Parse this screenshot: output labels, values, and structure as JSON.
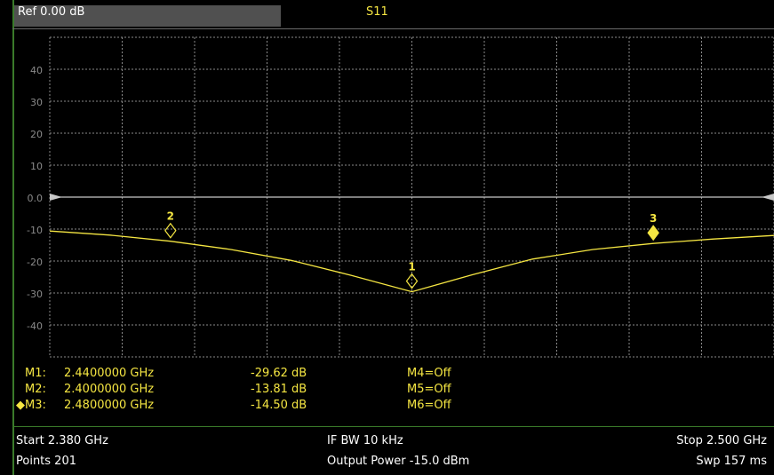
{
  "header": {
    "reference": "Ref 0.00 dB",
    "trace_name": "S11"
  },
  "y_axis_labels": [
    "40",
    "30",
    "20",
    "10",
    "0.0",
    "-10",
    "-20",
    "-30",
    "-40"
  ],
  "chart_data": {
    "type": "line",
    "title": "S11",
    "xlabel": "",
    "ylabel": "",
    "x_unit": "GHz",
    "y_unit": "dB",
    "xlim": [
      2.38,
      2.5
    ],
    "ylim": [
      -50,
      50
    ],
    "grid": true,
    "reference_level": 0.0,
    "series": [
      {
        "x": [
          2.38,
          2.39,
          2.4,
          2.41,
          2.42,
          2.43,
          2.44,
          2.45,
          2.46,
          2.47,
          2.48,
          2.49,
          2.5
        ],
        "y": [
          -10.6,
          -11.9,
          -13.81,
          -16.4,
          -19.8,
          -24.5,
          -29.62,
          -24.3,
          -19.4,
          -16.4,
          -14.5,
          -13.1,
          -12.0
        ]
      }
    ],
    "markers": [
      {
        "id": "1",
        "x": 2.44,
        "y": -29.62,
        "active": false
      },
      {
        "id": "2",
        "x": 2.4,
        "y": -13.81,
        "active": false
      },
      {
        "id": "3",
        "x": 2.48,
        "y": -14.5,
        "active": true
      }
    ]
  },
  "marker_table": {
    "rows": [
      {
        "label": "M1:",
        "freq": "2.4400000 GHz",
        "value": "-29.62 dB",
        "other": "M4=Off",
        "active": false
      },
      {
        "label": "M2:",
        "freq": "2.4000000 GHz",
        "value": "-13.81 dB",
        "other": "M5=Off",
        "active": false
      },
      {
        "label": "M3:",
        "freq": "2.4800000 GHz",
        "value": "-14.50 dB",
        "other": "M6=Off",
        "active": true
      }
    ]
  },
  "footer": {
    "start": "Start 2.380 GHz",
    "points": "Points 201",
    "ifbw": "IF BW 10 kHz",
    "power": "Output Power -15.0 dBm",
    "stop": "Stop 2.500 GHz",
    "sweep": "Swp 157 ms"
  },
  "colors": {
    "trace": "#f5e642",
    "grid": "#8a8a8a",
    "reference": "#c8c8c8",
    "frame": "#3a7a2a"
  }
}
